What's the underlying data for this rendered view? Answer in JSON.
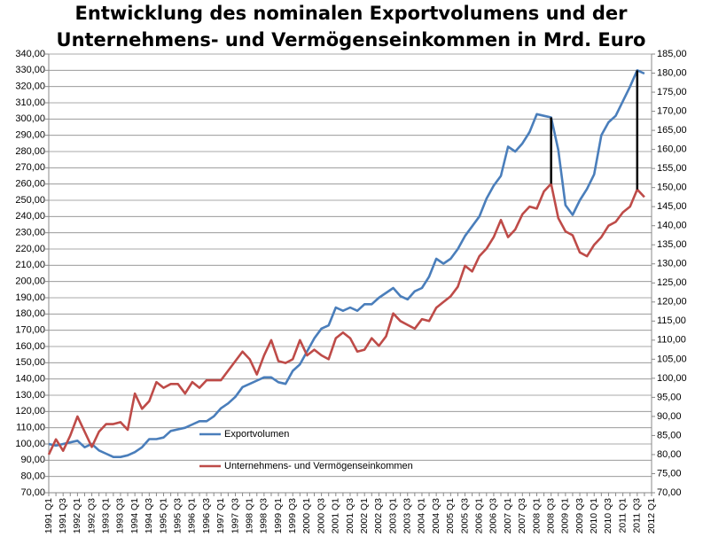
{
  "chart_data": {
    "type": "line",
    "title": [
      "Entwicklung des nominalen Exportvolumens  und der",
      "Unternehmens- und Vermögenseinkommen  in Mrd. Euro"
    ],
    "categories": [
      "1991 Q1",
      null,
      "1991 Q3",
      null,
      "1992 Q1",
      null,
      "1992 Q3",
      null,
      "1993 Q1",
      null,
      "1993 Q3",
      null,
      "1994 Q1",
      null,
      "1994 Q3",
      null,
      "1995 Q1",
      null,
      "1995 Q3",
      null,
      "1996 Q1",
      null,
      "1996 Q3",
      null,
      "1997 Q1",
      null,
      "1997 Q3",
      null,
      "1998 Q1",
      null,
      "1998 Q3",
      null,
      "1999 Q1",
      null,
      "1999 Q3",
      null,
      "2000 Q1",
      null,
      "2000 Q3",
      null,
      "2001 Q1",
      null,
      "2001 Q3",
      null,
      "2002 Q1",
      null,
      "2002 Q3",
      null,
      "2003 Q1",
      null,
      "2003 Q3",
      null,
      "2004 Q1",
      null,
      "2004 Q3",
      null,
      "2005 Q1",
      null,
      "2005 Q3",
      null,
      "2006 Q1",
      null,
      "2006 Q3",
      null,
      "2007 Q1",
      null,
      "2007 Q3",
      null,
      "2008 Q1",
      null,
      "2008 Q3",
      null,
      "2009 Q1",
      null,
      "2009 Q3",
      null,
      "2010 Q1",
      null,
      "2010 Q3",
      null,
      "2011 Q1",
      null,
      "2011 Q3",
      null,
      "2012 Q1"
    ],
    "series": [
      {
        "name": "Exportvolumen",
        "color": "#4a7ebb",
        "axis": "y",
        "values": [
          100,
          99,
          100,
          101,
          102,
          98,
          100,
          96,
          94,
          92,
          92,
          93,
          95,
          98,
          103,
          103,
          104,
          108,
          109,
          110,
          112,
          114,
          114,
          117,
          122,
          125,
          129,
          135,
          137,
          139,
          141,
          141,
          138,
          137,
          145,
          149,
          157,
          165,
          171,
          173,
          184,
          182,
          184,
          182,
          186,
          186,
          190,
          193,
          196,
          191,
          189,
          194,
          196,
          203,
          214,
          211,
          214,
          220,
          228,
          234,
          240,
          251,
          259,
          265,
          283,
          280,
          285,
          292,
          303,
          302,
          301,
          281,
          247,
          241,
          250,
          257,
          266,
          290,
          298,
          302,
          311,
          320,
          330,
          328,
          null
        ]
      },
      {
        "name": "Unternehmens- und Vermögenseinkommen",
        "color": "#be4b48",
        "axis": "y2",
        "values": [
          80,
          84,
          81,
          85,
          90,
          86,
          82,
          86,
          88,
          88,
          88.5,
          86.5,
          96,
          92,
          94,
          99,
          97.5,
          98.5,
          98.5,
          96,
          99,
          97.5,
          99.5,
          99.5,
          99.5,
          102,
          104.5,
          107,
          105,
          101,
          106,
          110,
          104.5,
          104,
          105,
          110,
          106,
          107.5,
          106,
          105,
          110.5,
          112,
          110.5,
          107,
          107.5,
          110.5,
          108.5,
          111,
          117,
          115,
          114,
          113,
          115.5,
          115,
          118.5,
          120,
          121.5,
          124,
          129.5,
          128,
          132,
          134,
          137,
          141.5,
          137,
          139,
          143,
          145,
          144.5,
          149,
          151,
          142,
          138.5,
          137.5,
          133,
          132,
          135,
          137,
          140,
          141,
          143.5,
          145,
          149.5,
          147.5,
          null
        ]
      }
    ],
    "ylim": [
      70,
      340
    ],
    "yticks": [
      {
        "value": 70,
        "label": "70,00"
      },
      {
        "value": 80,
        "label": "80,00"
      },
      {
        "value": 90,
        "label": "90,00"
      },
      {
        "value": 100,
        "label": "100,00"
      },
      {
        "value": 110,
        "label": "110,00"
      },
      {
        "value": 120,
        "label": "120,00"
      },
      {
        "value": 130,
        "label": "130,00"
      },
      {
        "value": 140,
        "label": "140,00"
      },
      {
        "value": 150,
        "label": "150,00"
      },
      {
        "value": 160,
        "label": "160,00"
      },
      {
        "value": 170,
        "label": "170,00"
      },
      {
        "value": 180,
        "label": "180,00"
      },
      {
        "value": 190,
        "label": "190,00"
      },
      {
        "value": 200,
        "label": "200,00"
      },
      {
        "value": 210,
        "label": "210,00"
      },
      {
        "value": 220,
        "label": "220,00"
      },
      {
        "value": 230,
        "label": "230,00"
      },
      {
        "value": 240,
        "label": "240,00"
      },
      {
        "value": 250,
        "label": "250,00"
      },
      {
        "value": 260,
        "label": "260,00"
      },
      {
        "value": 270,
        "label": "270,00"
      },
      {
        "value": 280,
        "label": "280,00"
      },
      {
        "value": 290,
        "label": "290,00"
      },
      {
        "value": 300,
        "label": "300,00"
      },
      {
        "value": 310,
        "label": "310,00"
      },
      {
        "value": 320,
        "label": "320,00"
      },
      {
        "value": 330,
        "label": "330,00"
      },
      {
        "value": 340,
        "label": "340,00"
      }
    ],
    "y2lim": [
      70,
      185
    ],
    "y2ticks": [
      {
        "value": 70,
        "label": "70,00"
      },
      {
        "value": 75,
        "label": "75,00"
      },
      {
        "value": 80,
        "label": "80,00"
      },
      {
        "value": 85,
        "label": "85,00"
      },
      {
        "value": 90,
        "label": "90,00"
      },
      {
        "value": 95,
        "label": "95,00"
      },
      {
        "value": 100,
        "label": "100,00"
      },
      {
        "value": 105,
        "label": "105,00"
      },
      {
        "value": 110,
        "label": "110,00"
      },
      {
        "value": 115,
        "label": "115,00"
      },
      {
        "value": 120,
        "label": "120,00"
      },
      {
        "value": 125,
        "label": "125,00"
      },
      {
        "value": 130,
        "label": "130,00"
      },
      {
        "value": 135,
        "label": "135,00"
      },
      {
        "value": 140,
        "label": "140,00"
      },
      {
        "value": 145,
        "label": "145,00"
      },
      {
        "value": 150,
        "label": "150,00"
      },
      {
        "value": 155,
        "label": "155,00"
      },
      {
        "value": 160,
        "label": "160,00"
      },
      {
        "value": 165,
        "label": "165,00"
      },
      {
        "value": 170,
        "label": "170,00"
      },
      {
        "value": 175,
        "label": "175,00"
      },
      {
        "value": 180,
        "label": "180,00"
      },
      {
        "value": 185,
        "label": "185,00"
      }
    ],
    "grid": true,
    "legend": "lower-left"
  }
}
